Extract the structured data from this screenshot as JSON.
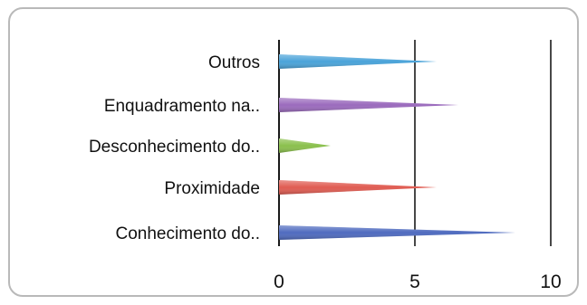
{
  "chart_data": {
    "type": "bar",
    "orientation": "horizontal",
    "bar_style": "cone",
    "categories": [
      "Outros",
      "Enquadramento na..",
      "Desconhecimento do..",
      "Proximidade",
      "Conhecimento do.."
    ],
    "values": [
      5.8,
      6.6,
      1.9,
      5.8,
      8.7
    ],
    "colors": [
      "#4aa3d9",
      "#9b6bbd",
      "#8bc04d",
      "#e05c52",
      "#4f6bbf"
    ],
    "xlim": [
      0,
      10
    ],
    "xticks": [
      "0",
      "5",
      "10"
    ],
    "grid": "vertical",
    "title": "",
    "xlabel": "",
    "ylabel": ""
  }
}
